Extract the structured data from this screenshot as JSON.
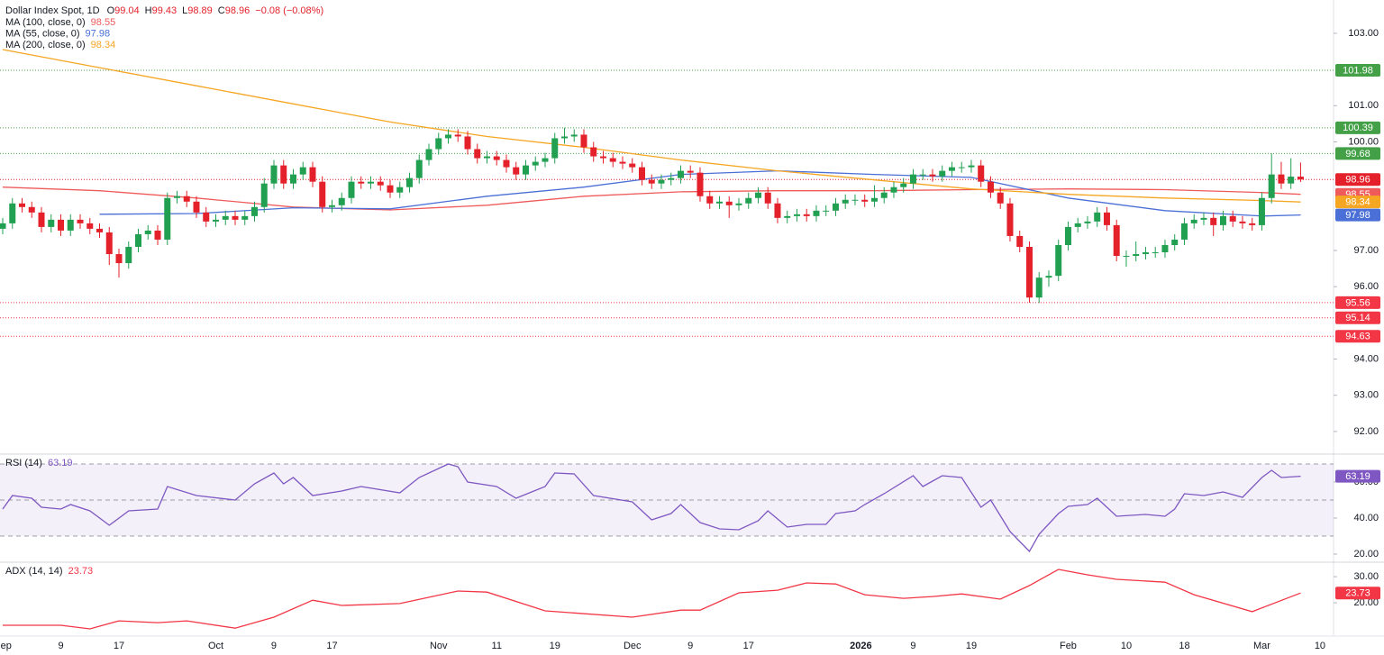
{
  "chart_data": [
    {
      "type": "candlestick",
      "title": "Dollar Index Spot, 1D",
      "ohlc_labels": [
        "O",
        "H",
        "L",
        "C"
      ],
      "change": "−0.08 (−0.08%)",
      "up_color": "#22a052",
      "down_color": "#e4202a",
      "open": [
        97.6,
        97.75,
        98.3,
        98.2,
        98.05,
        97.65,
        97.85,
        97.55,
        97.85,
        97.75,
        97.6,
        97.5,
        96.9,
        96.65,
        97.1,
        97.45,
        97.55,
        97.3,
        98.45,
        98.5,
        98.35,
        98.05,
        97.8,
        97.85,
        97.95,
        97.85,
        97.95,
        98.2,
        98.85,
        99.35,
        98.85,
        99.1,
        99.3,
        98.9,
        98.2,
        98.25,
        98.45,
        98.9,
        98.85,
        98.9,
        98.8,
        98.6,
        98.75,
        99.0,
        99.5,
        99.8,
        100.1,
        100.2,
        100.15,
        99.8,
        99.55,
        99.6,
        99.5,
        99.3,
        99.1,
        99.35,
        99.45,
        99.55,
        100.1,
        100.15,
        100.2,
        99.85,
        99.6,
        99.55,
        99.45,
        99.4,
        99.3,
        98.95,
        98.85,
        98.95,
        99.0,
        99.2,
        99.15,
        98.5,
        98.3,
        98.35,
        98.25,
        98.3,
        98.45,
        98.6,
        98.3,
        97.9,
        97.95,
        98.0,
        97.95,
        98.1,
        98.1,
        98.3,
        98.4,
        98.4,
        98.35,
        98.45,
        98.6,
        98.75,
        98.85,
        99.1,
        99.1,
        99.05,
        99.2,
        99.3,
        99.3,
        99.35,
        98.9,
        98.6,
        98.3,
        97.4,
        97.1,
        95.7,
        96.25,
        96.3,
        97.15,
        97.65,
        97.75,
        97.8,
        98.05,
        97.7,
        96.85,
        96.85,
        96.9,
        96.95,
        96.95,
        97.15,
        97.3,
        97.75,
        97.85,
        97.9,
        97.7,
        97.95,
        97.8,
        97.75,
        97.7,
        98.45,
        99.1,
        98.85,
        99.04
      ],
      "high": [
        97.9,
        98.45,
        98.45,
        98.35,
        98.2,
        98.0,
        98.0,
        98.0,
        98.0,
        97.9,
        97.75,
        97.65,
        97.05,
        97.25,
        97.6,
        97.7,
        97.7,
        98.6,
        98.65,
        98.65,
        98.5,
        98.2,
        98.0,
        98.1,
        98.1,
        98.1,
        98.35,
        99.0,
        99.5,
        99.5,
        99.25,
        99.45,
        99.45,
        99.05,
        98.4,
        98.6,
        99.05,
        99.05,
        99.05,
        99.05,
        98.95,
        98.9,
        99.15,
        99.65,
        99.95,
        100.25,
        100.35,
        100.35,
        100.3,
        99.95,
        99.75,
        99.75,
        99.65,
        99.45,
        99.5,
        99.6,
        99.7,
        100.25,
        100.39,
        100.35,
        100.35,
        100.0,
        99.75,
        99.7,
        99.6,
        99.55,
        99.45,
        99.1,
        99.1,
        99.15,
        99.35,
        99.35,
        99.3,
        98.65,
        98.5,
        98.5,
        98.45,
        98.6,
        98.75,
        98.75,
        98.45,
        98.1,
        98.15,
        98.15,
        98.25,
        98.25,
        98.45,
        98.55,
        98.55,
        98.55,
        98.8,
        98.75,
        98.9,
        99.0,
        99.25,
        99.25,
        99.25,
        99.35,
        99.45,
        99.45,
        99.5,
        99.5,
        99.05,
        98.75,
        98.45,
        97.55,
        97.25,
        96.4,
        96.45,
        97.3,
        97.8,
        97.9,
        97.95,
        98.2,
        98.2,
        97.85,
        97.0,
        97.25,
        97.1,
        97.1,
        97.3,
        97.45,
        97.9,
        98.0,
        98.05,
        98.05,
        98.1,
        98.1,
        97.95,
        97.9,
        98.6,
        99.68,
        99.45,
        99.55,
        99.43
      ],
      "low": [
        97.45,
        97.6,
        98.05,
        97.9,
        97.5,
        97.5,
        97.4,
        97.4,
        97.6,
        97.45,
        97.35,
        96.6,
        96.25,
        96.5,
        96.95,
        97.3,
        97.15,
        97.15,
        98.3,
        98.2,
        97.9,
        97.65,
        97.65,
        97.7,
        97.7,
        97.7,
        97.8,
        98.05,
        98.7,
        98.7,
        98.7,
        98.95,
        98.75,
        98.05,
        98.05,
        98.1,
        98.3,
        98.7,
        98.7,
        98.65,
        98.45,
        98.45,
        98.6,
        98.85,
        99.35,
        99.65,
        99.95,
        100.0,
        99.65,
        99.4,
        99.4,
        99.35,
        99.15,
        98.95,
        98.95,
        99.2,
        99.3,
        99.4,
        99.95,
        100.0,
        99.7,
        99.45,
        99.4,
        99.3,
        99.25,
        99.15,
        98.8,
        98.7,
        98.7,
        98.8,
        98.85,
        99.0,
        98.35,
        98.15,
        98.15,
        97.9,
        98.1,
        98.15,
        98.3,
        98.15,
        97.75,
        97.75,
        97.8,
        97.8,
        97.8,
        97.95,
        97.95,
        98.15,
        98.25,
        98.2,
        98.2,
        98.3,
        98.45,
        98.6,
        98.7,
        98.95,
        98.9,
        98.9,
        99.05,
        99.15,
        99.15,
        98.75,
        98.45,
        98.15,
        97.25,
        96.95,
        95.56,
        95.55,
        96.0,
        96.15,
        97.0,
        97.5,
        97.6,
        97.65,
        97.55,
        96.7,
        96.55,
        96.7,
        96.75,
        96.8,
        96.8,
        97.0,
        97.15,
        97.6,
        97.7,
        97.4,
        97.55,
        97.65,
        97.6,
        97.55,
        97.55,
        98.3,
        98.7,
        98.7,
        98.89
      ],
      "close": [
        97.75,
        98.3,
        98.2,
        98.05,
        97.65,
        97.85,
        97.55,
        97.85,
        97.75,
        97.6,
        97.5,
        96.9,
        96.65,
        97.1,
        97.45,
        97.55,
        97.3,
        98.45,
        98.5,
        98.35,
        98.05,
        97.8,
        97.85,
        97.95,
        97.85,
        97.95,
        98.2,
        98.85,
        99.35,
        98.85,
        99.1,
        99.3,
        98.9,
        98.2,
        98.25,
        98.45,
        98.9,
        98.85,
        98.9,
        98.8,
        98.6,
        98.75,
        99.0,
        99.5,
        99.8,
        100.1,
        100.2,
        100.15,
        99.8,
        99.55,
        99.6,
        99.5,
        99.3,
        99.1,
        99.35,
        99.45,
        99.55,
        100.1,
        100.15,
        100.2,
        99.85,
        99.6,
        99.55,
        99.45,
        99.4,
        99.3,
        98.95,
        98.85,
        98.95,
        99.0,
        99.2,
        99.15,
        98.5,
        98.3,
        98.35,
        98.25,
        98.3,
        98.45,
        98.6,
        98.3,
        97.9,
        97.95,
        98.0,
        97.95,
        98.1,
        98.1,
        98.3,
        98.4,
        98.4,
        98.35,
        98.45,
        98.6,
        98.75,
        98.85,
        99.1,
        99.1,
        99.05,
        99.2,
        99.3,
        99.3,
        99.35,
        98.9,
        98.6,
        98.3,
        97.4,
        97.1,
        95.7,
        96.25,
        96.3,
        97.15,
        97.65,
        97.75,
        97.8,
        98.05,
        97.7,
        96.85,
        96.85,
        96.9,
        96.95,
        96.95,
        97.15,
        97.3,
        97.75,
        97.85,
        97.9,
        97.7,
        97.95,
        97.8,
        97.75,
        97.7,
        98.45,
        99.1,
        98.85,
        99.04,
        98.96
      ],
      "ma_x": [
        0,
        10,
        20,
        30,
        40,
        50,
        60,
        70,
        80,
        90,
        100,
        110,
        120,
        130,
        134
      ],
      "series": [
        {
          "name": "MA (100, close, 0)",
          "color": "#ef5a5a",
          "values": [
            98.75,
            98.65,
            98.45,
            98.2,
            98.12,
            98.25,
            98.5,
            98.62,
            98.65,
            98.65,
            98.68,
            98.7,
            98.68,
            98.6,
            98.55
          ]
        },
        {
          "name": "MA (55, close, 0)",
          "color": "#4a6fd6",
          "values": [
            null,
            98.0,
            98.02,
            98.18,
            98.15,
            98.5,
            98.75,
            99.1,
            99.2,
            99.1,
            99.02,
            98.45,
            98.1,
            97.95,
            97.98
          ]
        },
        {
          "name": "MA (200, close, 0)",
          "color": "#f5a623",
          "values": [
            102.55,
            102.05,
            101.55,
            101.05,
            100.55,
            100.15,
            99.85,
            99.5,
            99.2,
            98.95,
            98.7,
            98.55,
            98.45,
            98.38,
            98.34
          ]
        }
      ],
      "levels": [
        {
          "value": 101.98,
          "color": "#43a047"
        },
        {
          "value": 100.39,
          "color": "#43a047"
        },
        {
          "value": 99.68,
          "color": "#43a047"
        },
        {
          "value": 95.56,
          "color": "#f23645"
        },
        {
          "value": 95.14,
          "color": "#f23645"
        },
        {
          "value": 94.63,
          "color": "#f23645"
        }
      ],
      "xlim": [
        -0.28,
        137.4
      ],
      "ylim": [
        91.4,
        103.92
      ],
      "yticks": [
        {
          "value": 103,
          "label": "103.00"
        },
        {
          "value": 101,
          "label": "101.00"
        },
        {
          "value": 100,
          "label": "100.00"
        },
        {
          "value": 97,
          "label": "97.00"
        },
        {
          "value": 96,
          "label": "96.00"
        },
        {
          "value": 94,
          "label": "94.00"
        },
        {
          "value": 93,
          "label": "93.00"
        },
        {
          "value": 92,
          "label": "92.00"
        }
      ],
      "xticks": [
        {
          "value": 0,
          "label": "Sep"
        },
        {
          "value": 6,
          "label": "9"
        },
        {
          "value": 12,
          "label": "17"
        },
        {
          "value": 22,
          "label": "Oct"
        },
        {
          "value": 28,
          "label": "9"
        },
        {
          "value": 34,
          "label": "17"
        },
        {
          "value": 45,
          "label": "Nov"
        },
        {
          "value": 51,
          "label": "11"
        },
        {
          "value": 57,
          "label": "19"
        },
        {
          "value": 65,
          "label": "Dec"
        },
        {
          "value": 71,
          "label": "9"
        },
        {
          "value": 77,
          "label": "17"
        },
        {
          "value": 88.6,
          "label": "2026",
          "bold": true
        },
        {
          "value": 94,
          "label": "9"
        },
        {
          "value": 100,
          "label": "19"
        },
        {
          "value": 110,
          "label": "Feb"
        },
        {
          "value": 116,
          "label": "10"
        },
        {
          "value": 122,
          "label": "18"
        },
        {
          "value": 130,
          "label": "Mar"
        },
        {
          "value": 136,
          "label": "10"
        }
      ]
    },
    {
      "type": "line",
      "title": "RSI (14)",
      "color": "#7e57c2",
      "band_color": "#7e57c2",
      "band": [
        30,
        70
      ],
      "levels": [
        70,
        50,
        30
      ],
      "x": [
        0,
        1,
        3,
        4,
        6,
        7,
        9,
        11,
        13,
        16,
        17,
        20,
        24,
        26,
        28,
        29,
        30,
        32,
        35,
        37,
        41,
        43,
        46,
        47,
        48,
        51,
        53,
        56,
        57,
        59,
        61,
        65,
        67,
        69,
        70,
        72,
        74,
        76,
        78,
        79,
        81,
        83,
        85,
        86,
        88,
        89,
        91,
        94,
        95,
        97,
        99,
        101,
        102,
        104,
        106,
        107,
        109,
        110,
        112,
        113,
        115,
        118,
        120,
        121,
        122,
        124,
        126,
        128,
        130,
        131,
        132,
        134
      ],
      "values": [
        45,
        52.5,
        51,
        46,
        45,
        47.5,
        44,
        36,
        44,
        45,
        57.5,
        52.5,
        50,
        59,
        65,
        59,
        62.5,
        52.5,
        55,
        57.5,
        54,
        62.5,
        70,
        68.5,
        60,
        57.5,
        51,
        57.5,
        65,
        64.5,
        52.5,
        49,
        39,
        42.5,
        47.5,
        37.5,
        34,
        33.5,
        38.5,
        44,
        35,
        36.5,
        36.5,
        42.5,
        44,
        47.5,
        53.5,
        63.5,
        57.5,
        63.5,
        62.5,
        46,
        50,
        32.5,
        21.5,
        31,
        42.5,
        46.5,
        47.5,
        51,
        41,
        42,
        41,
        45,
        53.5,
        52.5,
        54.5,
        51.5,
        62.5,
        66.5,
        62.5,
        63.19
      ],
      "xlim": [
        -0.28,
        137.4
      ],
      "ylim": [
        16,
        75
      ],
      "yticks": [
        {
          "value": 60,
          "label": "60.00"
        },
        {
          "value": 40,
          "label": "40.00"
        },
        {
          "value": 20,
          "label": "20.00"
        }
      ]
    },
    {
      "type": "line",
      "title": "ADX (14, 14)",
      "color": "#f23645",
      "x": [
        0,
        6,
        9,
        12,
        16,
        19,
        24,
        28,
        32,
        35,
        41,
        47,
        50,
        56,
        65,
        70,
        72,
        76,
        80,
        83,
        86,
        89,
        93,
        96,
        99,
        103,
        106,
        109,
        112,
        115,
        120,
        123,
        129,
        134
      ],
      "values": [
        11.4,
        11.4,
        10,
        13.1,
        12.4,
        13.1,
        10.3,
        14.5,
        21,
        19,
        19.7,
        24.5,
        24.1,
        16.9,
        14.5,
        17.2,
        17.2,
        23.8,
        24.8,
        27.6,
        27.2,
        23.1,
        21.7,
        22.4,
        23.4,
        21.4,
        26.6,
        32.8,
        30.7,
        29,
        27.9,
        23.1,
        16.6,
        23.73
      ],
      "xlim": [
        -0.28,
        137.4
      ],
      "ylim": [
        7.6,
        35.2
      ],
      "yticks": [
        {
          "value": 30,
          "label": "30.00"
        },
        {
          "value": 20,
          "label": "20.00"
        }
      ]
    }
  ]
}
